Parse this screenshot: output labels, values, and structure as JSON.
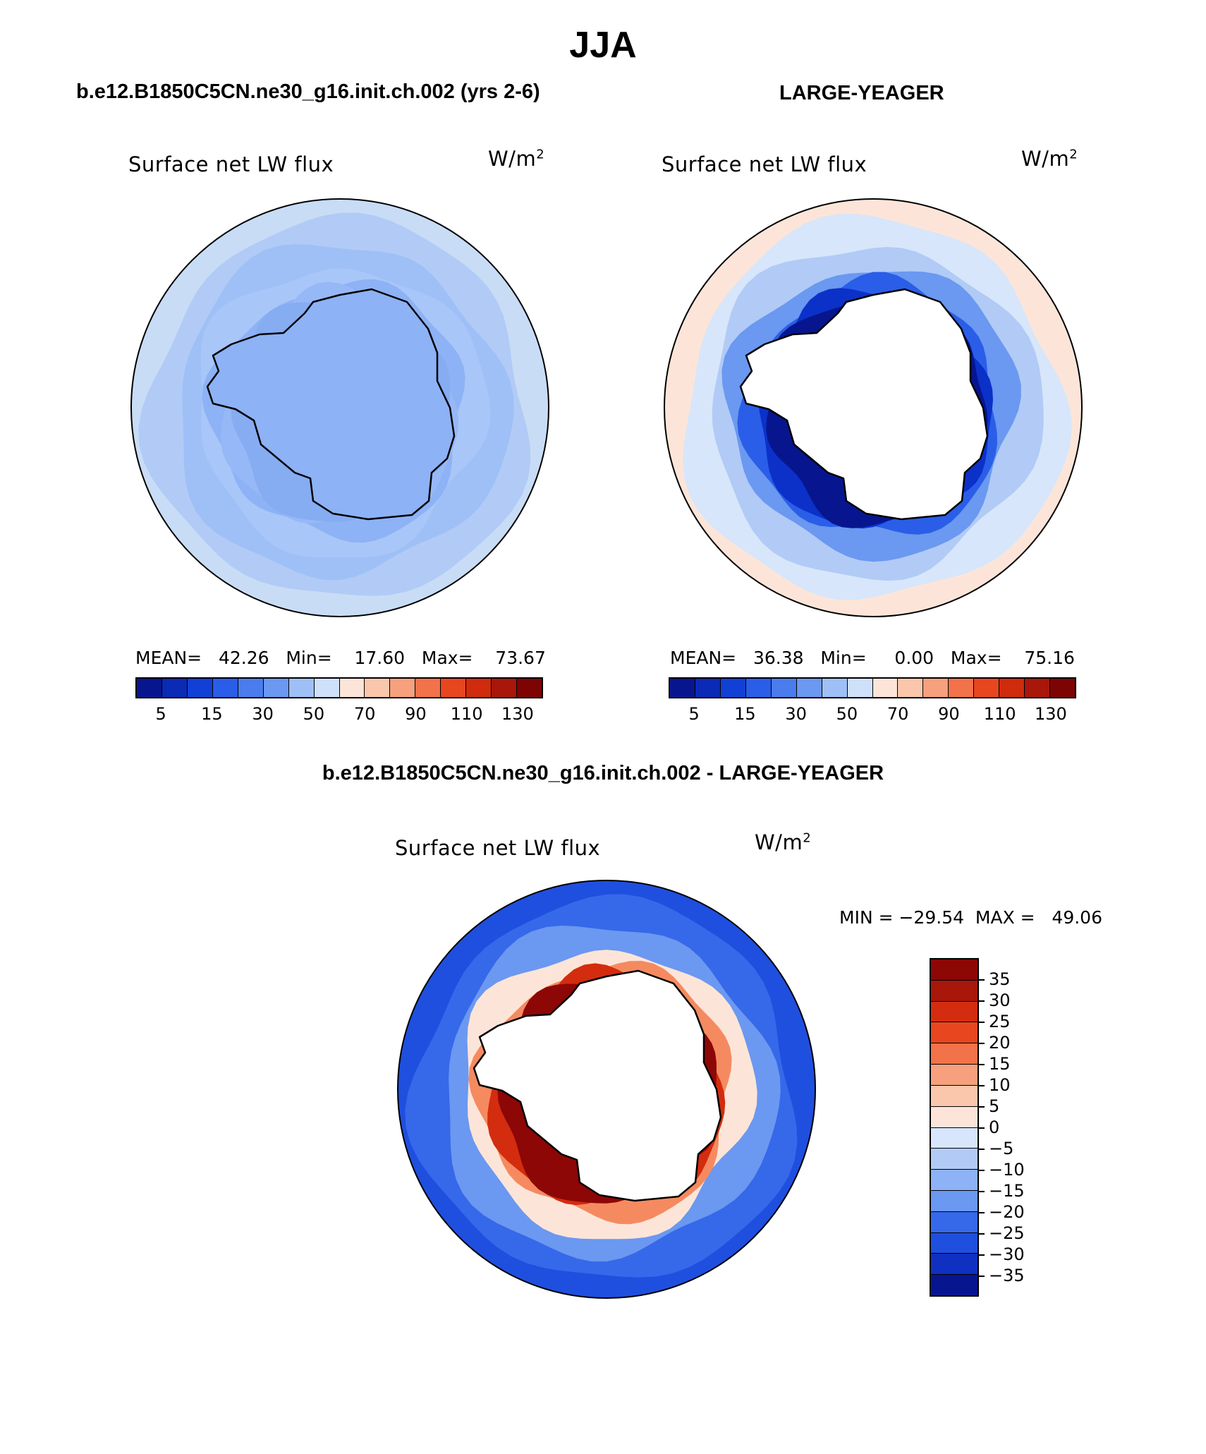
{
  "title": "JJA",
  "panels": {
    "left": {
      "header": "b.e12.B1850C5CN.ne30_g16.init.ch.002 (yrs 2-6)",
      "variable": "Surface net LW flux",
      "units": "W/m",
      "units_sup": "2",
      "stats": "MEAN=   42.26   Min=    17.60   Max=    73.67",
      "ring_colors": [
        "#c8dcf6",
        "#b1cbf6",
        "#9fc0f6",
        "#a8c6f8",
        "#8db2f5",
        "#97b8f6",
        "#86acf2"
      ]
    },
    "right": {
      "header": "LARGE-YEAGER",
      "variable": "Surface net LW flux",
      "units": "W/m",
      "units_sup": "2",
      "stats": "MEAN=   36.38   Min=     0.00   Max=    75.16",
      "ring_colors": [
        "#fce5d8",
        "#d7e6fa",
        "#b1cbf6",
        "#6b98f0",
        "#2a5ee8",
        "#0b31c9",
        "#07168f"
      ]
    },
    "diff": {
      "header": "b.e12.B1850C5CN.ne30_g16.init.ch.002 - LARGE-YEAGER",
      "variable": "Surface net LW flux",
      "units": "W/m",
      "units_sup": "2",
      "stats": "MIN = −29.54  MAX =   49.06",
      "ring_colors": [
        "#1f4fdf",
        "#3668ea",
        "#6b98f0",
        "#fce5d8",
        "#f58a60",
        "#d42c0e",
        "#8c0706"
      ]
    }
  },
  "colorbar_main": {
    "colors": [
      "#07168f",
      "#0b2ab5",
      "#1140d6",
      "#2a5ee8",
      "#4a7cee",
      "#6b98f0",
      "#9fc0f6",
      "#cfe1fa",
      "#fce5d8",
      "#fac7ad",
      "#f7a07d",
      "#f2724a",
      "#e8461f",
      "#cf2b0c",
      "#a8170a",
      "#7e0404"
    ],
    "labels": [
      "5",
      "15",
      "30",
      "50",
      "70",
      "90",
      "110",
      "130"
    ]
  },
  "colorbar_diff": {
    "colors": [
      "#8c0706",
      "#a8170a",
      "#d42c0e",
      "#e8461f",
      "#f2724a",
      "#f7a07d",
      "#fac7ad",
      "#fce5d8",
      "#d7e6fa",
      "#b1cbf6",
      "#8db2f5",
      "#6b98f0",
      "#3668ea",
      "#1f4fdf",
      "#0f30c0",
      "#07168f"
    ],
    "labels": [
      "35",
      "30",
      "25",
      "20",
      "15",
      "10",
      "5",
      "0",
      "−5",
      "−10",
      "−15",
      "−20",
      "−25",
      "−30",
      "−35"
    ]
  }
}
